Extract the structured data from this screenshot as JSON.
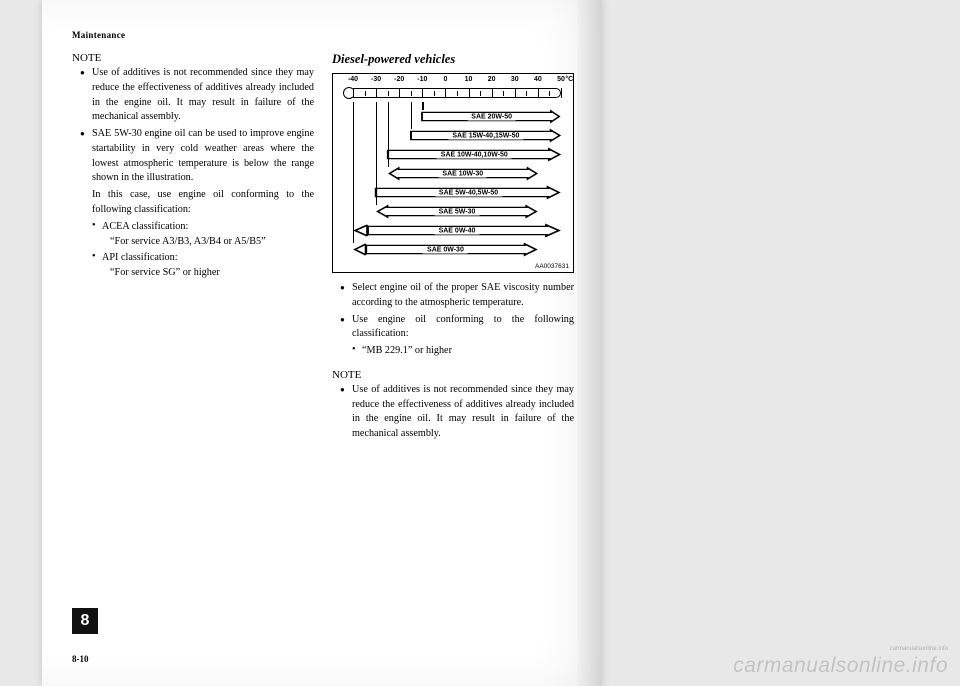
{
  "header": "Maintenance",
  "left": {
    "note_label": "NOTE",
    "bullets": [
      "Use of additives is not recommended since they may reduce the effectiveness of additives already included in the engine oil. It may result in failure of the mechanical assembly.",
      "SAE 5W-30 engine oil can be used to improve engine startability in very cold weather areas where the lowest atmospheric temperature is below the range shown in the illustration."
    ],
    "cont": "In this case, use engine oil conforming to the following classification:",
    "sub1_label": "ACEA classification:",
    "sub1_val": "“For service A3/B3, A3/B4 or A5/B5”",
    "sub2_label": "API classification:",
    "sub2_val": "“For service SG” or higher"
  },
  "right": {
    "heading": "Diesel-powered vehicles",
    "bullets": [
      "Select engine oil of the proper SAE viscosity number according to the atmospheric temperature.",
      "Use engine oil conforming to the following classification:"
    ],
    "sub1_val": "“MB 229.1” or higher",
    "note_label": "NOTE",
    "note_bullet": "Use of additives is not recommended since they may reduce the effectiveness of additives already included in the engine oil. It may result in failure of the mechanical assembly."
  },
  "chart": {
    "code": "AA0037631",
    "temp_min": -40,
    "temp_max": 50,
    "unit": "°C",
    "major_ticks": [
      -40,
      -30,
      -20,
      -10,
      0,
      10,
      20,
      30,
      40,
      50
    ],
    "minor_step": 5,
    "axis_fontsize": 7,
    "band_fontsize": 7,
    "band_color": "#000000",
    "band_height": 13,
    "band_gap": 6,
    "bands": [
      {
        "label": "SAE  20W-50",
        "from": -10,
        "to": 50,
        "half": true
      },
      {
        "label": "SAE  15W-40,15W-50",
        "from": -15,
        "to": 50,
        "half": true
      },
      {
        "label": "SAE  10W-40,10W-50",
        "from": -25,
        "to": 50,
        "half": true
      },
      {
        "label": "SAE  10W-30",
        "from": -25,
        "to": 40,
        "half": false
      },
      {
        "label": "SAE  5W-40,5W-50",
        "from": -30,
        "to": 50,
        "half": true
      },
      {
        "label": "SAE  5W-30",
        "from": -30,
        "to": 40,
        "half": false
      },
      {
        "label": "SAE  0W-40",
        "from": -40,
        "to": 50,
        "half": false,
        "openleft": true
      },
      {
        "label": "SAE  0W-30",
        "from": -40,
        "to": 40,
        "half": false,
        "openleft": true
      }
    ]
  },
  "chapter": "8",
  "page_num": "8-10",
  "watermark": "carmanualsonline.info",
  "watermark_small": "carmanualsonline.info"
}
